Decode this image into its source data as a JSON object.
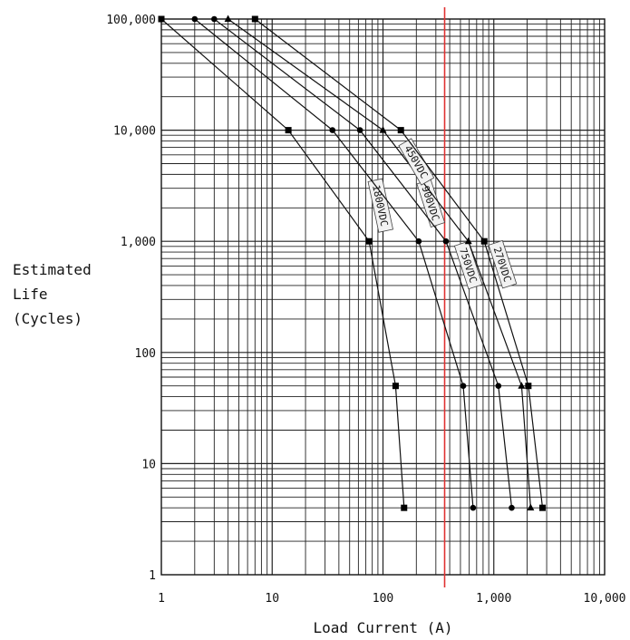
{
  "chart_data": {
    "type": "line",
    "title": "",
    "xlabel": "Load Current (A)",
    "ylabel_lines": [
      "Estimated",
      "Life",
      "(Cycles)"
    ],
    "x_scale": "log",
    "y_scale": "log",
    "xlim": [
      1,
      10000
    ],
    "ylim": [
      1,
      100000
    ],
    "x_ticks": [
      {
        "value": 1,
        "label": "1"
      },
      {
        "value": 10,
        "label": "10"
      },
      {
        "value": 100,
        "label": "100"
      },
      {
        "value": 1000,
        "label": "1,000"
      },
      {
        "value": 10000,
        "label": "10,000"
      }
    ],
    "y_ticks": [
      {
        "value": 1,
        "label": "1"
      },
      {
        "value": 10,
        "label": "10"
      },
      {
        "value": 100,
        "label": "100"
      },
      {
        "value": 1000,
        "label": "1,000"
      },
      {
        "value": 10000,
        "label": "10,000"
      },
      {
        "value": 100000,
        "label": "100,000"
      }
    ],
    "grid": true,
    "reference_line": {
      "x": 360,
      "color": "#e03030"
    },
    "series": [
      {
        "name": "1800VDC",
        "marker": "square",
        "label_at": [
          95,
          2100
        ],
        "label_angle": 78,
        "points": [
          [
            1,
            100000
          ],
          [
            14,
            10000
          ],
          [
            75,
            1000
          ],
          [
            130,
            50
          ],
          [
            155,
            4
          ]
        ]
      },
      {
        "name": "900VDC",
        "marker": "circle",
        "label_at": [
          270,
          2200
        ],
        "label_angle": 72,
        "points": [
          [
            2,
            100000
          ],
          [
            35,
            10000
          ],
          [
            210,
            1000
          ],
          [
            530,
            50
          ],
          [
            650,
            4
          ]
        ]
      },
      {
        "name": "750VDC",
        "marker": "circle",
        "label_at": [
          590,
          610
        ],
        "label_angle": 72,
        "points": [
          [
            3,
            100000
          ],
          [
            62,
            10000
          ],
          [
            370,
            1000
          ],
          [
            1100,
            50
          ],
          [
            1450,
            4
          ]
        ]
      },
      {
        "name": "450VDC",
        "marker": "triangle",
        "label_at": [
          200,
          5200
        ],
        "label_angle": 60,
        "points": [
          [
            4,
            100000
          ],
          [
            100,
            10000
          ],
          [
            590,
            1000
          ],
          [
            1780,
            50
          ],
          [
            2150,
            4
          ]
        ]
      },
      {
        "name": "270VDC",
        "marker": "square",
        "label_at": [
          1200,
          620
        ],
        "label_angle": 72,
        "points": [
          [
            7,
            100000
          ],
          [
            145,
            10000
          ],
          [
            820,
            1000
          ],
          [
            2050,
            50
          ],
          [
            2750,
            4
          ]
        ]
      }
    ]
  }
}
